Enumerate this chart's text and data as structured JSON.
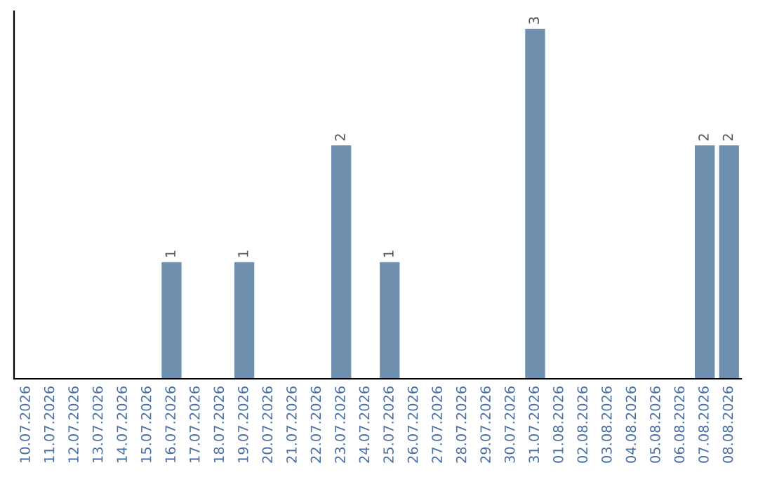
{
  "chart_data": {
    "type": "bar",
    "categories": [
      "10.07.2026",
      "11.07.2026",
      "12.07.2026",
      "13.07.2026",
      "14.07.2026",
      "15.07.2026",
      "16.07.2026",
      "17.07.2026",
      "18.07.2026",
      "19.07.2026",
      "20.07.2026",
      "21.07.2026",
      "22.07.2026",
      "23.07.2026",
      "24.07.2026",
      "25.07.2026",
      "26.07.2026",
      "27.07.2026",
      "28.07.2026",
      "29.07.2026",
      "30.07.2026",
      "31.07.2026",
      "01.08.2026",
      "02.08.2026",
      "03.08.2026",
      "04.08.2026",
      "05.08.2026",
      "06.08.2026",
      "07.08.2026",
      "08.08.2026"
    ],
    "values": [
      0,
      0,
      0,
      0,
      0,
      0,
      1,
      0,
      0,
      1,
      0,
      0,
      0,
      2,
      0,
      1,
      0,
      0,
      0,
      0,
      0,
      3,
      0,
      0,
      0,
      0,
      0,
      0,
      2,
      2
    ],
    "value_labels": [
      null,
      null,
      null,
      null,
      null,
      null,
      "1",
      null,
      null,
      "1",
      null,
      null,
      null,
      "2",
      null,
      "1",
      null,
      null,
      null,
      null,
      null,
      "3",
      null,
      null,
      null,
      null,
      null,
      null,
      "2",
      "2"
    ],
    "color": "#6f8fae",
    "ylim": [
      0,
      3.15
    ],
    "tick_labels": "x",
    "grid": false
  }
}
